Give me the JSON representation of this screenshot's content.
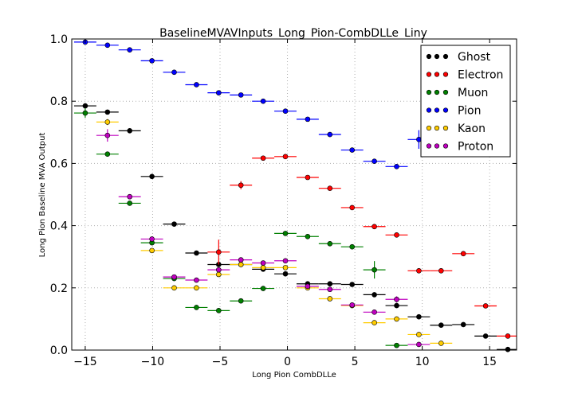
{
  "chart_data": {
    "type": "scatter",
    "title": "BaselineMVAVInputs_Long_Pion-CombDLLe_Liny",
    "xlabel": "Long Pion CombDLLe",
    "ylabel": "Long Pion Baseline MVA Output",
    "xlim": [
      -16,
      17
    ],
    "ylim": [
      0,
      1.0
    ],
    "xticks": [
      -15,
      -10,
      -5,
      0,
      5,
      10,
      15
    ],
    "xtick_labels": [
      "−15",
      "−10",
      "−5",
      "0",
      "5",
      "10",
      "15"
    ],
    "yticks": [
      0,
      0.2,
      0.4,
      0.6,
      0.8,
      1.0
    ],
    "ytick_labels": [
      "0.0",
      "0.2",
      "0.4",
      "0.6",
      "0.8",
      "1.0"
    ],
    "grid": true,
    "legend_position": "top-right",
    "bin_halfwidth": 0.825,
    "series": [
      {
        "name": "Ghost",
        "color": "#000000",
        "x": [
          -15,
          -13.35,
          -11.7,
          -10.05,
          -8.4,
          -6.75,
          -5.1,
          -3.45,
          -1.8,
          -0.15,
          1.5,
          3.15,
          4.8,
          6.45,
          8.1,
          9.75,
          11.4,
          13.05,
          14.7,
          16.35
        ],
        "y": [
          0.785,
          0.765,
          0.705,
          0.558,
          0.405,
          0.312,
          0.275,
          0.275,
          0.26,
          0.245,
          0.213,
          0.213,
          0.211,
          0.178,
          0.143,
          0.107,
          0.08,
          0.082,
          0.045,
          0.002
        ],
        "err": [
          0.005,
          0.005,
          0.005,
          0.005,
          0.004,
          0.004,
          0.004,
          0.004,
          0.004,
          0.004,
          0.004,
          0.004,
          0.004,
          0.004,
          0.004,
          0.004,
          0.004,
          0.004,
          0.004,
          0.003
        ]
      },
      {
        "name": "Electron",
        "color": "#ff0000",
        "x": [
          -5.1,
          -3.45,
          -1.8,
          -0.15,
          1.5,
          3.15,
          4.8,
          6.45,
          8.1,
          9.75,
          11.4,
          13.05,
          14.7,
          16.35
        ],
        "y": [
          0.315,
          0.53,
          0.617,
          0.622,
          0.555,
          0.52,
          0.458,
          0.397,
          0.37,
          0.255,
          0.255,
          0.31,
          0.142,
          0.045
        ],
        "err": [
          0.04,
          0.013,
          0.005,
          0.004,
          0.004,
          0.004,
          0.004,
          0.004,
          0.004,
          0.004,
          0.004,
          0.004,
          0.004,
          0.004
        ]
      },
      {
        "name": "Muon",
        "color": "#008000",
        "x": [
          -15,
          -13.35,
          -11.7,
          -10.05,
          -8.4,
          -6.75,
          -5.1,
          -3.45,
          -1.8,
          -0.15,
          1.5,
          3.15,
          4.8,
          6.45,
          8.1
        ],
        "y": [
          0.762,
          0.63,
          0.472,
          0.345,
          0.23,
          0.137,
          0.127,
          0.158,
          0.198,
          0.375,
          0.365,
          0.342,
          0.332,
          0.258,
          0.015
        ],
        "err": [
          0.015,
          0.004,
          0.004,
          0.004,
          0.004,
          0.004,
          0.004,
          0.004,
          0.004,
          0.004,
          0.004,
          0.004,
          0.008,
          0.028,
          0.004
        ]
      },
      {
        "name": "Pion",
        "color": "#0000ff",
        "x": [
          -15,
          -13.35,
          -11.7,
          -10.05,
          -8.4,
          -6.75,
          -5.1,
          -3.45,
          -1.8,
          -0.15,
          1.5,
          3.15,
          4.8,
          6.45,
          8.1,
          9.75
        ],
        "y": [
          0.99,
          0.98,
          0.965,
          0.93,
          0.893,
          0.853,
          0.827,
          0.82,
          0.8,
          0.768,
          0.742,
          0.693,
          0.643,
          0.607,
          0.59,
          0.677
        ],
        "err": [
          0.002,
          0.002,
          0.002,
          0.002,
          0.002,
          0.002,
          0.002,
          0.002,
          0.002,
          0.002,
          0.002,
          0.002,
          0.002,
          0.002,
          0.004,
          0.03
        ]
      },
      {
        "name": "Kaon",
        "color": "#ffcc00",
        "x": [
          -13.35,
          -10.05,
          -8.4,
          -6.75,
          -5.1,
          -3.45,
          -1.8,
          -0.15,
          1.5,
          3.15,
          4.8,
          6.45,
          8.1,
          9.75,
          11.4
        ],
        "y": [
          0.733,
          0.32,
          0.2,
          0.2,
          0.243,
          0.275,
          0.265,
          0.265,
          0.2,
          0.165,
          0.143,
          0.088,
          0.1,
          0.05,
          0.022
        ],
        "err": [
          0.01,
          0.004,
          0.004,
          0.004,
          0.004,
          0.004,
          0.004,
          0.004,
          0.004,
          0.004,
          0.004,
          0.004,
          0.004,
          0.004,
          0.004
        ]
      },
      {
        "name": "Proton",
        "color": "#bf00bf",
        "x": [
          -13.35,
          -11.7,
          -10.05,
          -8.4,
          -6.75,
          -5.1,
          -3.45,
          -1.8,
          -0.15,
          1.5,
          3.15,
          4.8,
          6.45,
          8.1,
          9.75
        ],
        "y": [
          0.69,
          0.493,
          0.357,
          0.235,
          0.225,
          0.258,
          0.29,
          0.28,
          0.287,
          0.205,
          0.195,
          0.145,
          0.122,
          0.163,
          0.018
        ],
        "err": [
          0.02,
          0.004,
          0.004,
          0.004,
          0.004,
          0.004,
          0.004,
          0.004,
          0.004,
          0.004,
          0.004,
          0.004,
          0.004,
          0.01,
          0.004
        ]
      }
    ]
  }
}
